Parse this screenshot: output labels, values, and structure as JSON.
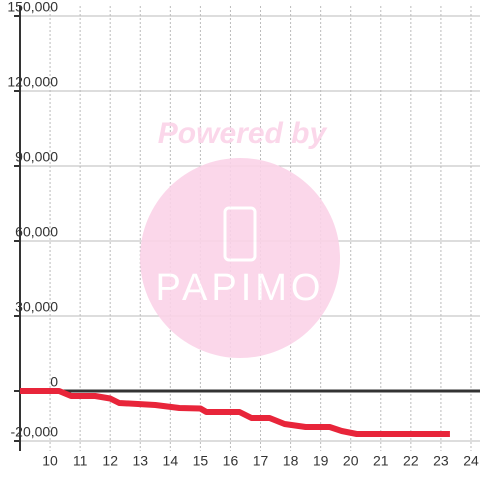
{
  "chart_data": {
    "type": "line",
    "watermark": "Powered by",
    "watermark_logo": "PAPIMO",
    "x": [
      9,
      10.3,
      10.7,
      11.5,
      12,
      12.3,
      13.5,
      14.3,
      15,
      15.2,
      16.3,
      16.7,
      17.3,
      17.8,
      18.5,
      19.3,
      19.7,
      20.2,
      23.3
    ],
    "values": [
      0,
      0,
      -2000,
      -2000,
      -3000,
      -4800,
      -5600,
      -6800,
      -7000,
      -8400,
      -8400,
      -10800,
      -10800,
      -13200,
      -14400,
      -14400,
      -16000,
      -17200,
      -17200
    ],
    "color": "#e8253a",
    "xlim": [
      9,
      24.3
    ],
    "ylim": [
      -24000,
      154000
    ],
    "xticks": [
      10,
      11,
      12,
      13,
      14,
      15,
      16,
      17,
      18,
      19,
      20,
      21,
      22,
      23,
      24
    ],
    "yticks": [
      {
        "value": -20000,
        "label": "-20,000"
      },
      0,
      {
        "value": 30000,
        "label": "30,000"
      },
      {
        "value": 60000,
        "label": "60,000"
      },
      {
        "value": 90000,
        "label": "90,000"
      },
      {
        "value": 120000,
        "label": "120,000"
      },
      {
        "value": 150000,
        "label": "150,000"
      }
    ],
    "grid": true
  }
}
